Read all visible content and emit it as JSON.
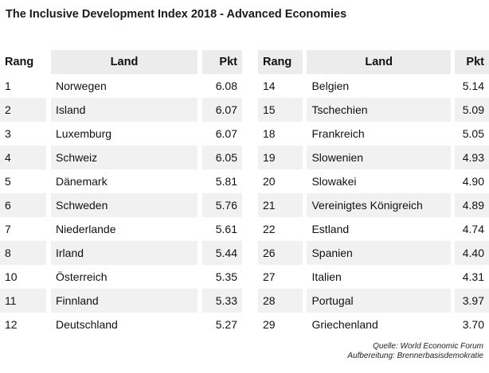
{
  "title": "The Inclusive Development Index 2018 - Advanced Economies",
  "columns": {
    "rang": "Rang",
    "land": "Land",
    "pkt": "Pkt"
  },
  "left_rows": [
    {
      "rang": "1",
      "land": "Norwegen",
      "pkt": "6.08"
    },
    {
      "rang": "2",
      "land": "Island",
      "pkt": "6.07"
    },
    {
      "rang": "3",
      "land": "Luxemburg",
      "pkt": "6.07"
    },
    {
      "rang": "4",
      "land": "Schweiz",
      "pkt": "6.05"
    },
    {
      "rang": "5",
      "land": "Dänemark",
      "pkt": "5.81"
    },
    {
      "rang": "6",
      "land": "Schweden",
      "pkt": "5.76"
    },
    {
      "rang": "7",
      "land": "Niederlande",
      "pkt": "5.61"
    },
    {
      "rang": "8",
      "land": "Irland",
      "pkt": "5.44"
    },
    {
      "rang": "10",
      "land": "Österreich",
      "pkt": "5.35"
    },
    {
      "rang": "11",
      "land": "Finnland",
      "pkt": "5.33"
    },
    {
      "rang": "12",
      "land": "Deutschland",
      "pkt": "5.27"
    }
  ],
  "right_rows": [
    {
      "rang": "14",
      "land": "Belgien",
      "pkt": "5.14"
    },
    {
      "rang": "15",
      "land": "Tschechien",
      "pkt": "5.09"
    },
    {
      "rang": "18",
      "land": "Frankreich",
      "pkt": "5.05"
    },
    {
      "rang": "19",
      "land": "Slowenien",
      "pkt": "4.93"
    },
    {
      "rang": "20",
      "land": "Slowakei",
      "pkt": "4.90"
    },
    {
      "rang": "21",
      "land": "Vereinigtes Königreich",
      "pkt": "4.89"
    },
    {
      "rang": "22",
      "land": "Estland",
      "pkt": "4.74"
    },
    {
      "rang": "26",
      "land": "Spanien",
      "pkt": "4.40"
    },
    {
      "rang": "27",
      "land": "Italien",
      "pkt": "4.31"
    },
    {
      "rang": "28",
      "land": "Portugal",
      "pkt": "3.97"
    },
    {
      "rang": "29",
      "land": "Griechenland",
      "pkt": "3.70"
    }
  ],
  "source": {
    "line1": "Quelle: World Economic Forum",
    "line2": "Aufbereitung: Brennerbasisdemokratie"
  },
  "colors": {
    "stripe": "#f1f1f1",
    "header_bg": "#ececec"
  }
}
